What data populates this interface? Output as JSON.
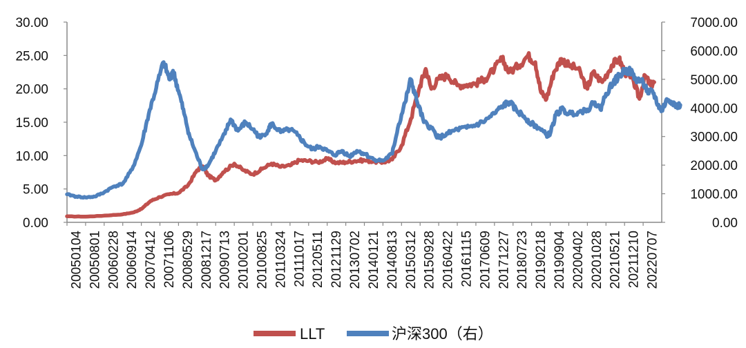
{
  "chart_data": {
    "type": "line",
    "title": "",
    "xlabel": "",
    "ylabel": "",
    "ylim_left": [
      0,
      30
    ],
    "ylim_right": [
      0,
      7000
    ],
    "y_ticks_left": [
      "0.00",
      "5.00",
      "10.00",
      "15.00",
      "20.00",
      "25.00",
      "30.00"
    ],
    "y_ticks_right": [
      "0.00",
      "1000.00",
      "2000.00",
      "3000.00",
      "4000.00",
      "5000.00",
      "6000.00",
      "7000.00"
    ],
    "x_tick_labels": [
      "20050104",
      "20050801",
      "20060228",
      "20060914",
      "20070412",
      "20071106",
      "20080529",
      "20081217",
      "20090713",
      "20100201",
      "20100825",
      "20110324",
      "20111017",
      "20120511",
      "20121129",
      "20130702",
      "20140121",
      "20140813",
      "20150312",
      "20150928",
      "20160422",
      "20161115",
      "20170609",
      "20171227",
      "20180723",
      "20190218",
      "20190904",
      "20200402",
      "20201028",
      "20210521",
      "20211210",
      "20220707"
    ],
    "grid": false,
    "legend_position": "bottom",
    "colors": {
      "LLT": "#C0504D",
      "hs300": "#4F81BD"
    },
    "series": [
      {
        "name": "LLT",
        "axis": "left",
        "key": "LLT",
        "points": [
          [
            0,
            0.9
          ],
          [
            1,
            0.85
          ],
          [
            2,
            1.0
          ],
          [
            3,
            1.2
          ],
          [
            3.6,
            1.5
          ],
          [
            4,
            2.0
          ],
          [
            4.5,
            3.2
          ],
          [
            5,
            3.8
          ],
          [
            5.5,
            4.2
          ],
          [
            6,
            4.4
          ],
          [
            6.5,
            5.5
          ],
          [
            7,
            7.8
          ],
          [
            7.3,
            8.4
          ],
          [
            7.6,
            7.0
          ],
          [
            8,
            6.3
          ],
          [
            8.4,
            7.5
          ],
          [
            9,
            8.8
          ],
          [
            9.5,
            7.8
          ],
          [
            10,
            7.2
          ],
          [
            10.5,
            8.0
          ],
          [
            11,
            8.8
          ],
          [
            11.5,
            8.3
          ],
          [
            12,
            8.5
          ],
          [
            12.5,
            9.3
          ],
          [
            13,
            9.2
          ],
          [
            13.5,
            9.0
          ],
          [
            14,
            9.5
          ],
          [
            14.5,
            8.9
          ],
          [
            15,
            9.0
          ],
          [
            15.5,
            9.2
          ],
          [
            16,
            9.3
          ],
          [
            16.5,
            9.1
          ],
          [
            17,
            9.0
          ],
          [
            17.5,
            9.4
          ],
          [
            18,
            11.5
          ],
          [
            18.5,
            15.5
          ],
          [
            19,
            20.5
          ],
          [
            19.3,
            23.0
          ],
          [
            19.6,
            20.0
          ],
          [
            20,
            21.5
          ],
          [
            20.5,
            22.0
          ],
          [
            21,
            20.5
          ],
          [
            21.5,
            20.6
          ],
          [
            22,
            20.8
          ],
          [
            22.5,
            21.5
          ],
          [
            23,
            23.0
          ],
          [
            23.4,
            24.5
          ],
          [
            23.8,
            22.5
          ],
          [
            24.3,
            23.5
          ],
          [
            24.8,
            25.0
          ],
          [
            25.2,
            24.0
          ],
          [
            25.5,
            19.5
          ],
          [
            25.8,
            18.5
          ],
          [
            26.2,
            22.5
          ],
          [
            26.6,
            24.5
          ],
          [
            27,
            23.5
          ],
          [
            27.5,
            23.0
          ],
          [
            28,
            20.0
          ],
          [
            28.3,
            22.5
          ],
          [
            28.8,
            21.0
          ],
          [
            29.3,
            23.5
          ],
          [
            29.7,
            24.5
          ],
          [
            30,
            22.5
          ],
          [
            30.5,
            21.0
          ],
          [
            30.8,
            18.5
          ],
          [
            31.1,
            22.0
          ],
          [
            31.4,
            20.5
          ],
          [
            31.6,
            21.0
          ]
        ]
      },
      {
        "name": "沪深300（右）",
        "axis": "right",
        "key": "hs300",
        "points": [
          [
            0,
            980
          ],
          [
            0.5,
            900
          ],
          [
            1,
            870
          ],
          [
            1.5,
            900
          ],
          [
            2,
            1050
          ],
          [
            2.5,
            1250
          ],
          [
            3,
            1350
          ],
          [
            3.5,
            1850
          ],
          [
            4,
            2700
          ],
          [
            4.4,
            3800
          ],
          [
            4.8,
            4700
          ],
          [
            5.2,
            5600
          ],
          [
            5.5,
            5000
          ],
          [
            5.7,
            5300
          ],
          [
            6,
            4600
          ],
          [
            6.3,
            3800
          ],
          [
            6.6,
            3000
          ],
          [
            7,
            2300
          ],
          [
            7.3,
            1850
          ],
          [
            7.6,
            2000
          ],
          [
            8,
            2500
          ],
          [
            8.5,
            3100
          ],
          [
            8.8,
            3600
          ],
          [
            9.2,
            3200
          ],
          [
            9.6,
            3500
          ],
          [
            10,
            3250
          ],
          [
            10.4,
            2950
          ],
          [
            10.8,
            3200
          ],
          [
            11,
            3450
          ],
          [
            11.5,
            3150
          ],
          [
            12,
            3250
          ],
          [
            12.4,
            3050
          ],
          [
            12.8,
            2750
          ],
          [
            13.2,
            2550
          ],
          [
            13.6,
            2650
          ],
          [
            14,
            2500
          ],
          [
            14.4,
            2350
          ],
          [
            14.8,
            2500
          ],
          [
            15.2,
            2300
          ],
          [
            15.6,
            2500
          ],
          [
            16,
            2400
          ],
          [
            16.5,
            2200
          ],
          [
            17,
            2150
          ],
          [
            17.5,
            2400
          ],
          [
            17.8,
            3300
          ],
          [
            18.2,
            4200
          ],
          [
            18.5,
            5000
          ],
          [
            18.8,
            4300
          ],
          [
            19.2,
            3500
          ],
          [
            19.6,
            3300
          ],
          [
            20,
            2950
          ],
          [
            20.5,
            3100
          ],
          [
            21,
            3250
          ],
          [
            21.5,
            3300
          ],
          [
            22,
            3400
          ],
          [
            22.5,
            3550
          ],
          [
            23,
            3800
          ],
          [
            23.5,
            4100
          ],
          [
            23.8,
            4200
          ],
          [
            24.2,
            3900
          ],
          [
            24.6,
            3700
          ],
          [
            25,
            3450
          ],
          [
            25.4,
            3300
          ],
          [
            25.8,
            3050
          ],
          [
            26,
            3100
          ],
          [
            26.3,
            3750
          ],
          [
            26.6,
            3950
          ],
          [
            27,
            3800
          ],
          [
            27.5,
            3850
          ],
          [
            28,
            3950
          ],
          [
            28.4,
            4200
          ],
          [
            28.7,
            3950
          ],
          [
            29,
            4500
          ],
          [
            29.4,
            4900
          ],
          [
            29.7,
            5100
          ],
          [
            30,
            5300
          ],
          [
            30.3,
            5300
          ],
          [
            30.6,
            5000
          ],
          [
            31,
            4900
          ],
          [
            31.3,
            4500
          ],
          [
            31.5,
            4600
          ],
          [
            31.8,
            4100
          ],
          [
            32,
            3900
          ],
          [
            32.3,
            4300
          ],
          [
            32.6,
            4200
          ],
          [
            32.8,
            4050
          ],
          [
            33,
            4100
          ]
        ]
      }
    ]
  }
}
